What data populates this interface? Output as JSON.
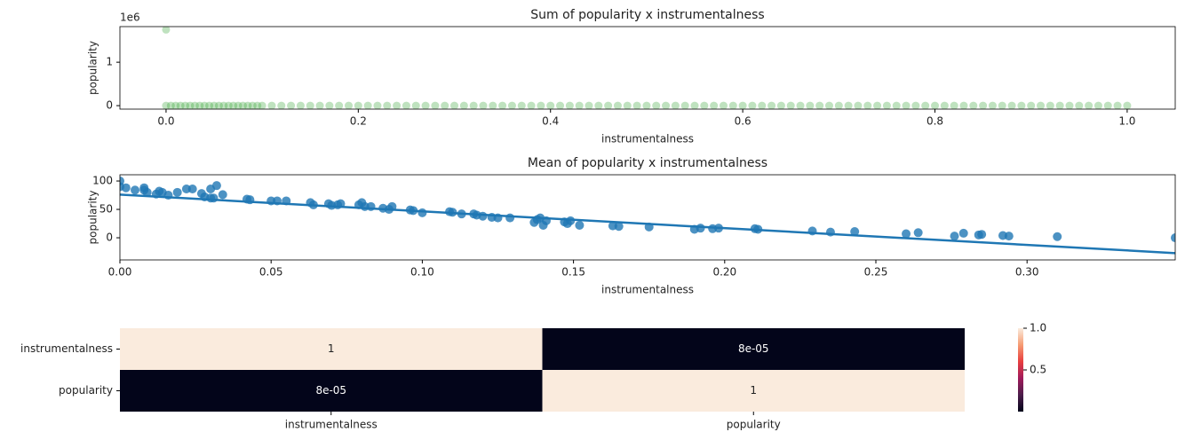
{
  "chart_data": [
    {
      "type": "scatter",
      "title": "Sum of popularity x instrumentalness",
      "x_label": "instrumentalness",
      "y_label": "popularity",
      "y_offset_label": "1e6",
      "color": "#2ca02c",
      "x": [
        0,
        0,
        0.005,
        0.01,
        0.015,
        0.02,
        0.025,
        0.03,
        0.035,
        0.04,
        0.045,
        0.05,
        0.055,
        0.06,
        0.065,
        0.07,
        0.075,
        0.08,
        0.085,
        0.09,
        0.095,
        0.1,
        0.11,
        0.12,
        0.13,
        0.14,
        0.15,
        0.16,
        0.17,
        0.18,
        0.19,
        0.2,
        0.21,
        0.22,
        0.23,
        0.24,
        0.25,
        0.26,
        0.27,
        0.28,
        0.29,
        0.3,
        0.31,
        0.32,
        0.33,
        0.34,
        0.35,
        0.36,
        0.37,
        0.38,
        0.39,
        0.4,
        0.41,
        0.42,
        0.43,
        0.44,
        0.45,
        0.46,
        0.47,
        0.48,
        0.49,
        0.5,
        0.51,
        0.52,
        0.53,
        0.54,
        0.55,
        0.56,
        0.57,
        0.58,
        0.59,
        0.6,
        0.61,
        0.62,
        0.63,
        0.64,
        0.65,
        0.66,
        0.67,
        0.68,
        0.69,
        0.7,
        0.71,
        0.72,
        0.73,
        0.74,
        0.75,
        0.76,
        0.77,
        0.78,
        0.79,
        0.8,
        0.81,
        0.82,
        0.83,
        0.84,
        0.85,
        0.86,
        0.87,
        0.88,
        0.89,
        0.9,
        0.91,
        0.92,
        0.93,
        0.94,
        0.95,
        0.96,
        0.97,
        0.98,
        0.99,
        1.0
      ],
      "values": [
        1.75,
        0,
        0,
        0,
        0,
        0,
        0,
        0,
        0,
        0,
        0,
        0,
        0,
        0,
        0,
        0,
        0,
        0,
        0,
        0,
        0,
        0,
        0,
        0,
        0,
        0,
        0,
        0,
        0,
        0,
        0,
        0,
        0,
        0,
        0,
        0,
        0,
        0,
        0,
        0,
        0,
        0,
        0,
        0,
        0,
        0,
        0,
        0,
        0,
        0,
        0,
        0,
        0,
        0,
        0,
        0,
        0,
        0,
        0,
        0,
        0,
        0,
        0,
        0,
        0,
        0,
        0,
        0,
        0,
        0,
        0,
        0,
        0,
        0,
        0,
        0,
        0,
        0,
        0,
        0,
        0,
        0,
        0,
        0,
        0,
        0,
        0,
        0,
        0,
        0,
        0,
        0,
        0,
        0,
        0,
        0,
        0,
        0,
        0,
        0,
        0,
        0,
        0,
        0,
        0,
        0,
        0,
        0,
        0,
        0,
        0,
        0
      ],
      "xlim": [
        -0.048,
        1.05
      ],
      "ylim": [
        -0.08,
        1.82
      ],
      "xticks": [
        {
          "value": 0,
          "label": "0.0"
        },
        0.2,
        0.4,
        0.6,
        0.8,
        {
          "value": 1,
          "label": "1.0"
        }
      ],
      "yticks": [
        0,
        1
      ]
    },
    {
      "type": "scatter",
      "title": "Mean of popularity x instrumentalness",
      "x_label": "instrumentalness",
      "y_label": "popularity",
      "color": "#1f77b4",
      "x": [
        0,
        0,
        0.002,
        0.005,
        0.008,
        0.008,
        0.009,
        0.012,
        0.013,
        0.014,
        0.016,
        0.019,
        0.022,
        0.024,
        0.027,
        0.028,
        0.03,
        0.03,
        0.031,
        0.032,
        0.034,
        0.042,
        0.043,
        0.05,
        0.052,
        0.055,
        0.063,
        0.064,
        0.069,
        0.07,
        0.072,
        0.073,
        0.079,
        0.08,
        0.081,
        0.083,
        0.087,
        0.089,
        0.09,
        0.096,
        0.097,
        0.1,
        0.109,
        0.11,
        0.113,
        0.117,
        0.118,
        0.12,
        0.123,
        0.125,
        0.129,
        0.137,
        0.138,
        0.139,
        0.14,
        0.141,
        0.147,
        0.148,
        0.149,
        0.152,
        0.163,
        0.165,
        0.175,
        0.19,
        0.192,
        0.196,
        0.198,
        0.21,
        0.211,
        0.229,
        0.235,
        0.243,
        0.26,
        0.264,
        0.276,
        0.279,
        0.284,
        0.285,
        0.292,
        0.294,
        0.31,
        0.349
      ],
      "values": [
        100,
        90,
        88,
        84,
        84,
        88,
        80,
        77,
        82,
        80,
        75,
        80,
        86,
        86,
        78,
        72,
        70,
        86,
        70,
        92,
        76,
        68,
        67,
        65,
        65,
        65,
        62,
        58,
        60,
        57,
        58,
        60,
        58,
        62,
        55,
        55,
        52,
        50,
        55,
        49,
        48,
        44,
        46,
        45,
        42,
        42,
        40,
        38,
        36,
        35,
        35,
        27,
        32,
        35,
        22,
        30,
        28,
        25,
        30,
        22,
        21,
        20,
        19,
        15,
        17,
        16,
        17,
        16,
        15,
        12,
        10,
        11,
        7,
        9,
        3,
        8,
        5,
        6,
        4,
        3,
        2,
        0
      ],
      "regression": {
        "x": [
          0,
          0.349
        ],
        "values": [
          76,
          -27
        ]
      },
      "xlim": [
        0,
        0.349
      ],
      "ylim": [
        -39,
        111
      ],
      "xticks": [
        {
          "value": 0,
          "label": "0.00"
        },
        0.05,
        {
          "value": 0.1,
          "label": "0.10"
        },
        0.15,
        {
          "value": 0.2,
          "label": "0.20"
        },
        0.25,
        {
          "value": 0.3,
          "label": "0.30"
        }
      ],
      "yticks": [
        0,
        50,
        100
      ]
    },
    {
      "type": "heatmap",
      "x_categories": [
        "instrumentalness",
        "popularity"
      ],
      "y_categories": [
        "instrumentalness",
        "popularity"
      ],
      "values": [
        [
          1,
          8e-05
        ],
        [
          8e-05,
          1
        ]
      ],
      "value_labels": [
        [
          "1",
          "8e-05"
        ],
        [
          "8e-05",
          "1"
        ]
      ],
      "colormap": [
        "#03051a",
        "#4c1d4b",
        "#a11a5b",
        "#e83f3f",
        "#f69c73",
        "#faebdd"
      ],
      "clim": [
        8e-05,
        1
      ],
      "cticks": [
        0.5,
        {
          "value": 1,
          "label": "1.0"
        }
      ]
    }
  ]
}
